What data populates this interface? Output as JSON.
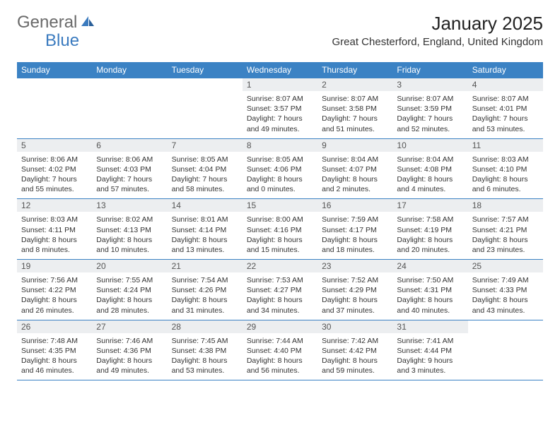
{
  "brand": {
    "part1": "General",
    "part2": "Blue"
  },
  "title": "January 2025",
  "location": "Great Chesterford, England, United Kingdom",
  "colors": {
    "header_bg": "#3b82c4",
    "header_text": "#ffffff",
    "daynum_bg": "#eceef0",
    "daynum_text": "#555555",
    "body_text": "#333333",
    "row_border": "#3b82c4",
    "page_bg": "#ffffff",
    "logo_gray": "#6a6a6a",
    "logo_blue": "#3b7bbf"
  },
  "day_headers": [
    "Sunday",
    "Monday",
    "Tuesday",
    "Wednesday",
    "Thursday",
    "Friday",
    "Saturday"
  ],
  "weeks": [
    [
      null,
      null,
      null,
      {
        "n": "1",
        "sunrise": "8:07 AM",
        "sunset": "3:57 PM",
        "daylight": "7 hours and 49 minutes."
      },
      {
        "n": "2",
        "sunrise": "8:07 AM",
        "sunset": "3:58 PM",
        "daylight": "7 hours and 51 minutes."
      },
      {
        "n": "3",
        "sunrise": "8:07 AM",
        "sunset": "3:59 PM",
        "daylight": "7 hours and 52 minutes."
      },
      {
        "n": "4",
        "sunrise": "8:07 AM",
        "sunset": "4:01 PM",
        "daylight": "7 hours and 53 minutes."
      }
    ],
    [
      {
        "n": "5",
        "sunrise": "8:06 AM",
        "sunset": "4:02 PM",
        "daylight": "7 hours and 55 minutes."
      },
      {
        "n": "6",
        "sunrise": "8:06 AM",
        "sunset": "4:03 PM",
        "daylight": "7 hours and 57 minutes."
      },
      {
        "n": "7",
        "sunrise": "8:05 AM",
        "sunset": "4:04 PM",
        "daylight": "7 hours and 58 minutes."
      },
      {
        "n": "8",
        "sunrise": "8:05 AM",
        "sunset": "4:06 PM",
        "daylight": "8 hours and 0 minutes."
      },
      {
        "n": "9",
        "sunrise": "8:04 AM",
        "sunset": "4:07 PM",
        "daylight": "8 hours and 2 minutes."
      },
      {
        "n": "10",
        "sunrise": "8:04 AM",
        "sunset": "4:08 PM",
        "daylight": "8 hours and 4 minutes."
      },
      {
        "n": "11",
        "sunrise": "8:03 AM",
        "sunset": "4:10 PM",
        "daylight": "8 hours and 6 minutes."
      }
    ],
    [
      {
        "n": "12",
        "sunrise": "8:03 AM",
        "sunset": "4:11 PM",
        "daylight": "8 hours and 8 minutes."
      },
      {
        "n": "13",
        "sunrise": "8:02 AM",
        "sunset": "4:13 PM",
        "daylight": "8 hours and 10 minutes."
      },
      {
        "n": "14",
        "sunrise": "8:01 AM",
        "sunset": "4:14 PM",
        "daylight": "8 hours and 13 minutes."
      },
      {
        "n": "15",
        "sunrise": "8:00 AM",
        "sunset": "4:16 PM",
        "daylight": "8 hours and 15 minutes."
      },
      {
        "n": "16",
        "sunrise": "7:59 AM",
        "sunset": "4:17 PM",
        "daylight": "8 hours and 18 minutes."
      },
      {
        "n": "17",
        "sunrise": "7:58 AM",
        "sunset": "4:19 PM",
        "daylight": "8 hours and 20 minutes."
      },
      {
        "n": "18",
        "sunrise": "7:57 AM",
        "sunset": "4:21 PM",
        "daylight": "8 hours and 23 minutes."
      }
    ],
    [
      {
        "n": "19",
        "sunrise": "7:56 AM",
        "sunset": "4:22 PM",
        "daylight": "8 hours and 26 minutes."
      },
      {
        "n": "20",
        "sunrise": "7:55 AM",
        "sunset": "4:24 PM",
        "daylight": "8 hours and 28 minutes."
      },
      {
        "n": "21",
        "sunrise": "7:54 AM",
        "sunset": "4:26 PM",
        "daylight": "8 hours and 31 minutes."
      },
      {
        "n": "22",
        "sunrise": "7:53 AM",
        "sunset": "4:27 PM",
        "daylight": "8 hours and 34 minutes."
      },
      {
        "n": "23",
        "sunrise": "7:52 AM",
        "sunset": "4:29 PM",
        "daylight": "8 hours and 37 minutes."
      },
      {
        "n": "24",
        "sunrise": "7:50 AM",
        "sunset": "4:31 PM",
        "daylight": "8 hours and 40 minutes."
      },
      {
        "n": "25",
        "sunrise": "7:49 AM",
        "sunset": "4:33 PM",
        "daylight": "8 hours and 43 minutes."
      }
    ],
    [
      {
        "n": "26",
        "sunrise": "7:48 AM",
        "sunset": "4:35 PM",
        "daylight": "8 hours and 46 minutes."
      },
      {
        "n": "27",
        "sunrise": "7:46 AM",
        "sunset": "4:36 PM",
        "daylight": "8 hours and 49 minutes."
      },
      {
        "n": "28",
        "sunrise": "7:45 AM",
        "sunset": "4:38 PM",
        "daylight": "8 hours and 53 minutes."
      },
      {
        "n": "29",
        "sunrise": "7:44 AM",
        "sunset": "4:40 PM",
        "daylight": "8 hours and 56 minutes."
      },
      {
        "n": "30",
        "sunrise": "7:42 AM",
        "sunset": "4:42 PM",
        "daylight": "8 hours and 59 minutes."
      },
      {
        "n": "31",
        "sunrise": "7:41 AM",
        "sunset": "4:44 PM",
        "daylight": "9 hours and 3 minutes."
      },
      null
    ]
  ],
  "labels": {
    "sunrise": "Sunrise: ",
    "sunset": "Sunset: ",
    "daylight": "Daylight: "
  }
}
